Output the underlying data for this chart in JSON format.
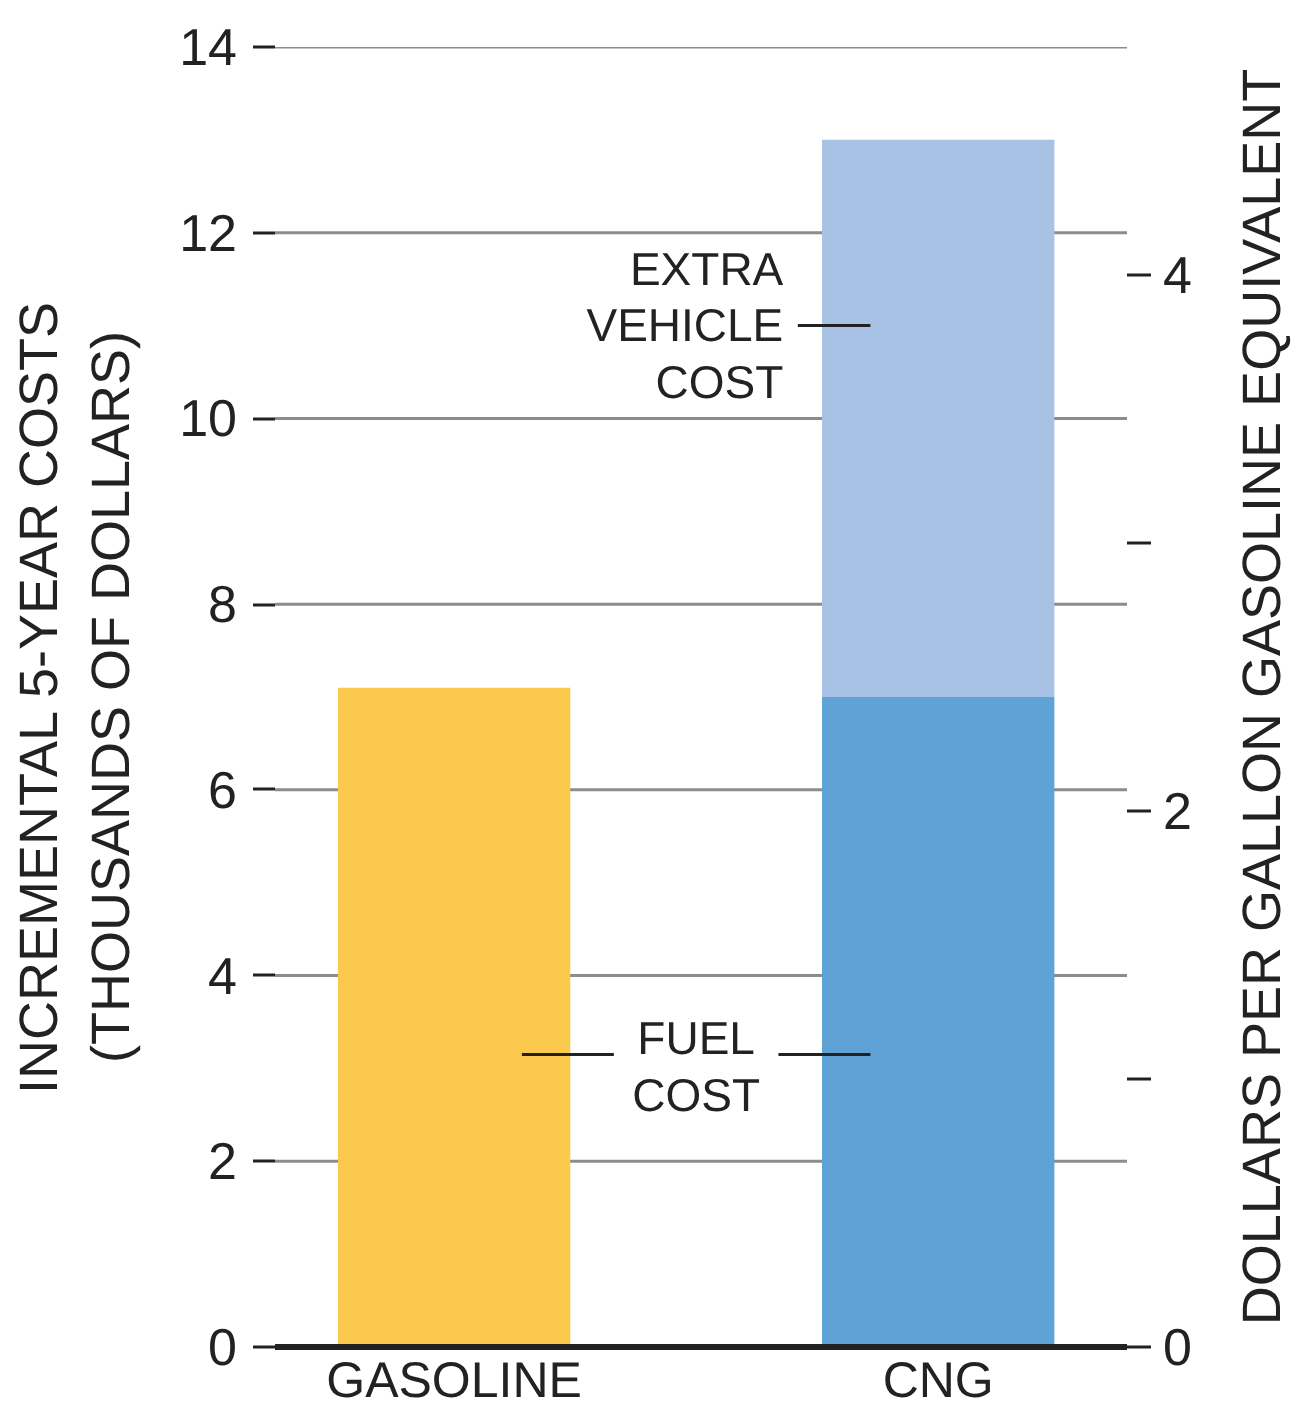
{
  "chart_data": {
    "type": "bar",
    "stacked": true,
    "categories": [
      "GASOLINE",
      "CNG"
    ],
    "series": [
      {
        "name": "FUEL COST",
        "colors": [
          "#fbc94e",
          "#5fa2d6"
        ],
        "values": [
          7.1,
          7.0
        ]
      },
      {
        "name": "EXTRA VEHICLE COST",
        "color": "#a7c2e5",
        "values": [
          null,
          6.0
        ]
      }
    ],
    "ylabel": "INCREMENTAL 5-YEAR COSTS\n(THOUSANDS OF DOLLARS)",
    "y2label": "DOLLARS PER GALLON GASOLINE EQUIVALENT",
    "ylim": [
      0,
      14
    ],
    "yticks": [
      0,
      2,
      4,
      6,
      8,
      10,
      12,
      14
    ],
    "y2lim": [
      0,
      4.85
    ],
    "y2ticks": [
      0,
      {
        "value": 1,
        "label": null
      },
      2,
      {
        "value": 3,
        "label": null
      },
      4
    ],
    "grid": "y"
  }
}
